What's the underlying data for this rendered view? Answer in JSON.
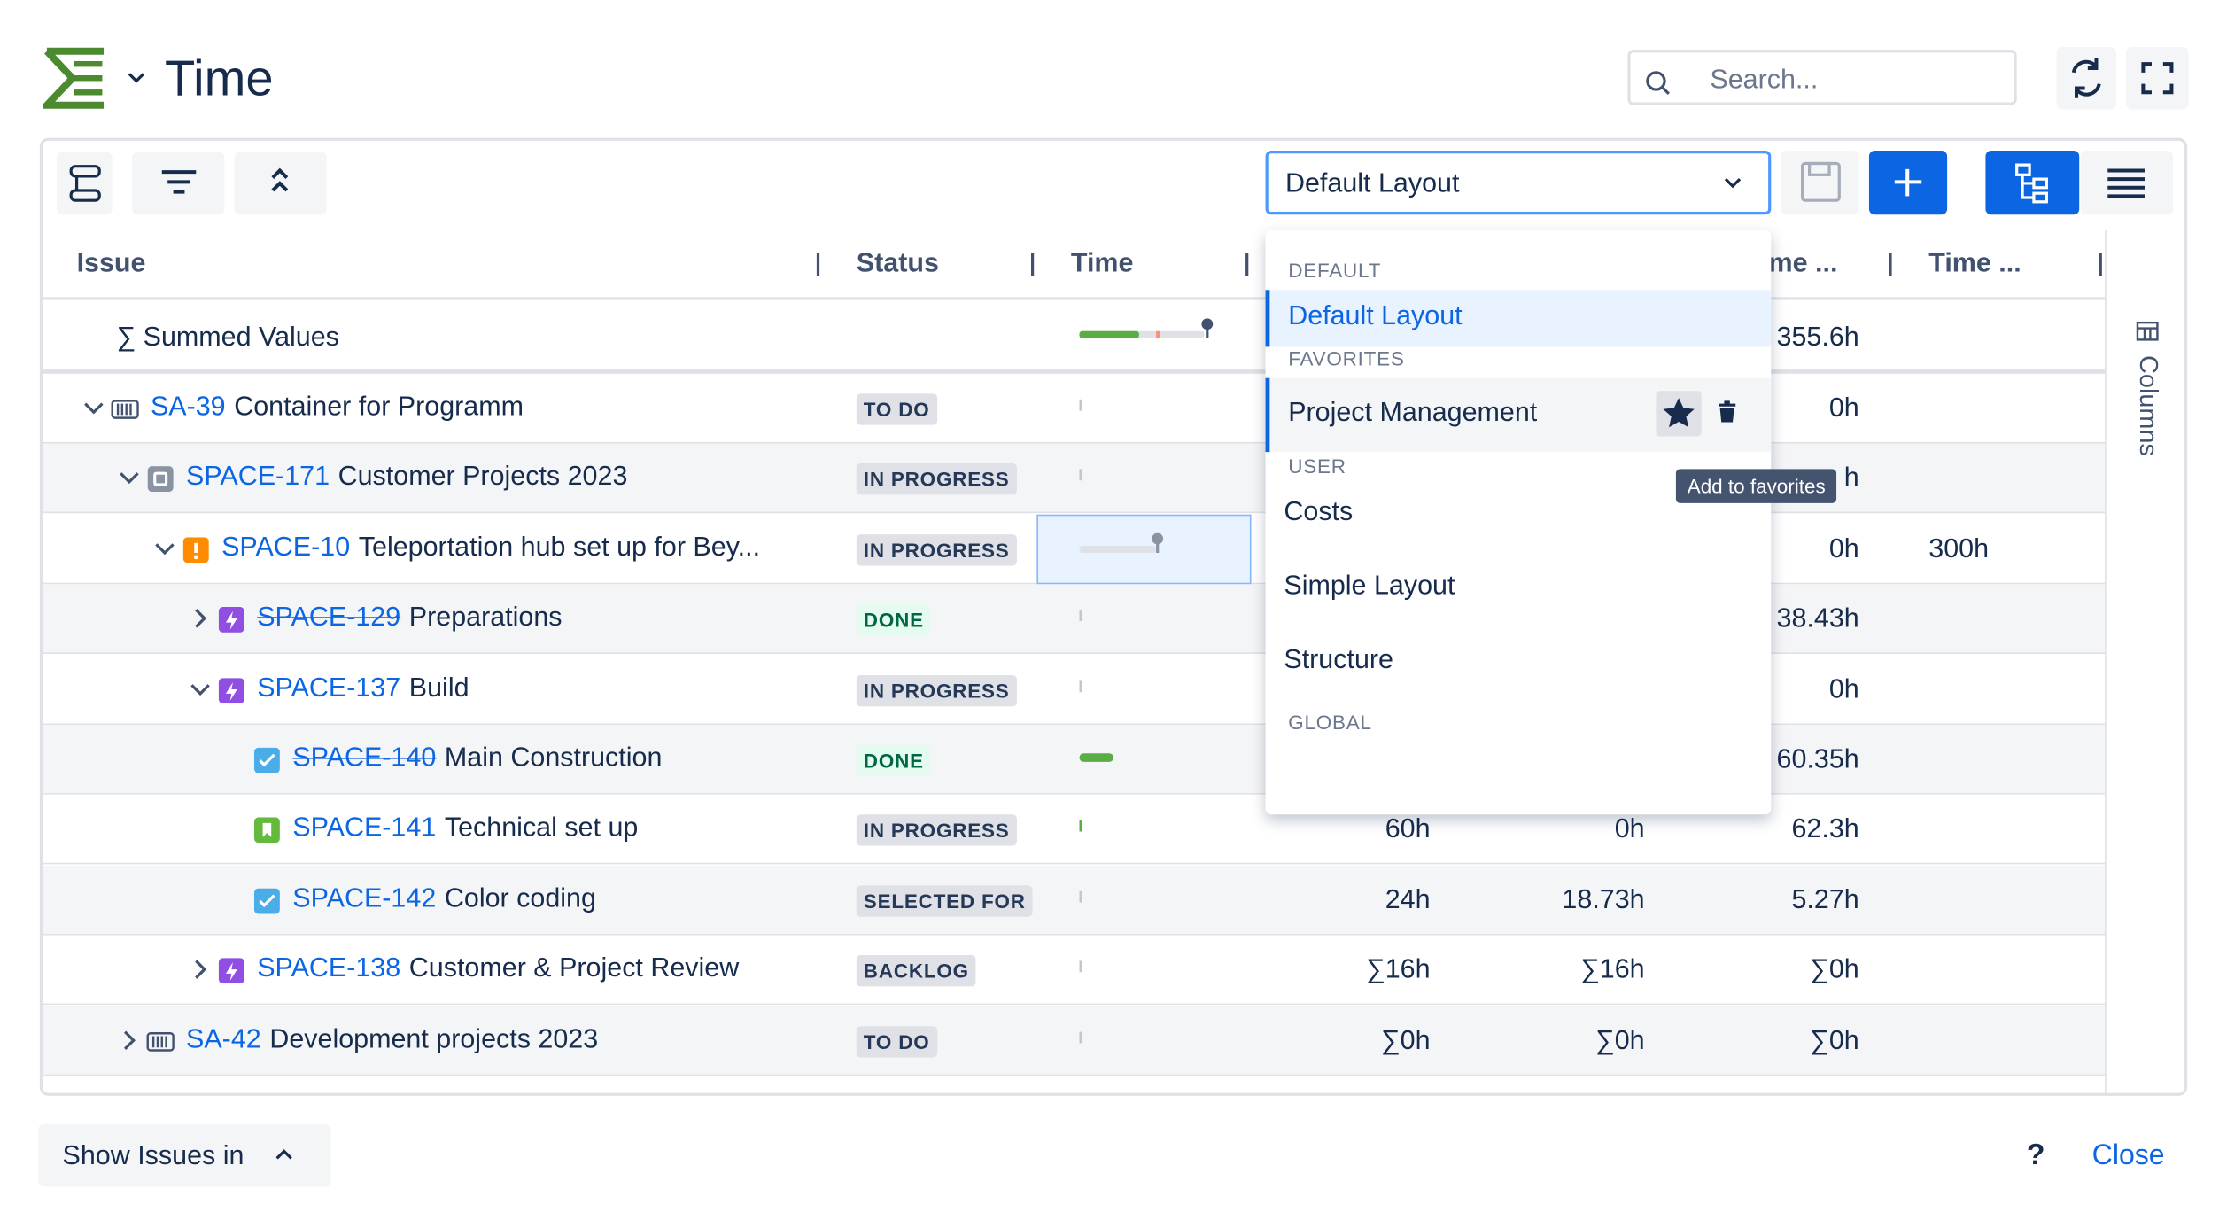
{
  "header": {
    "title": "Time",
    "search_placeholder": "Search..."
  },
  "toolbar": {
    "layout_select": "Default Layout"
  },
  "table": {
    "columns": [
      "Issue",
      "Status",
      "Time",
      "ime ...",
      "Time ..."
    ],
    "summary_row": {
      "label": "∑ Summed Values",
      "values": [
        null,
        null,
        "355.6h",
        null
      ]
    },
    "rows": [
      {
        "key": "SA-39",
        "summary": "Container for Programm",
        "status": "TO DO",
        "level": 0,
        "expander": "down",
        "icon": "container",
        "done": false,
        "values": [
          null,
          null,
          "0h",
          null
        ]
      },
      {
        "key": "SPACE-171",
        "summary": "Customer Projects 2023",
        "status": "IN PROGRESS",
        "level": 1,
        "expander": "down",
        "icon": "square",
        "done": false,
        "values": [
          null,
          null,
          "h",
          null
        ]
      },
      {
        "key": "SPACE-10",
        "summary": "Teleportation hub set up for Bey...",
        "status": "IN PROGRESS",
        "level": 2,
        "expander": "down",
        "icon": "alert",
        "done": false,
        "values": [
          null,
          null,
          "0h",
          "300h"
        ]
      },
      {
        "key": "SPACE-129",
        "summary": "Preparations",
        "status": "DONE",
        "level": 3,
        "expander": "right",
        "icon": "epic",
        "done": true,
        "values": [
          null,
          null,
          "38.43h",
          null
        ]
      },
      {
        "key": "SPACE-137",
        "summary": "Build",
        "status": "IN PROGRESS",
        "level": 3,
        "expander": "down",
        "icon": "epic",
        "done": false,
        "values": [
          null,
          null,
          "0h",
          null
        ]
      },
      {
        "key": "SPACE-140",
        "summary": "Main Construction",
        "status": "DONE",
        "level": 4,
        "expander": null,
        "icon": "task",
        "done": true,
        "values": [
          null,
          null,
          "60.35h",
          null
        ]
      },
      {
        "key": "SPACE-141",
        "summary": "Technical set up",
        "status": "IN PROGRESS",
        "level": 4,
        "expander": null,
        "icon": "story",
        "done": false,
        "values": [
          "60h",
          "0h",
          "62.3h",
          null
        ]
      },
      {
        "key": "SPACE-142",
        "summary": "Color coding",
        "status": "SELECTED FOR",
        "level": 4,
        "expander": null,
        "icon": "task",
        "done": false,
        "values": [
          "24h",
          "18.73h",
          "5.27h",
          null
        ]
      },
      {
        "key": "SPACE-138",
        "summary": "Customer & Project Review",
        "status": "BACKLOG",
        "level": 3,
        "expander": "right",
        "icon": "epic",
        "done": false,
        "values": [
          "∑16h",
          "∑16h",
          "∑0h",
          null
        ]
      },
      {
        "key": "SA-42",
        "summary": "Development projects 2023",
        "status": "TO DO",
        "level": 1,
        "expander": "right",
        "icon": "container",
        "done": false,
        "values": [
          "∑0h",
          "∑0h",
          "∑0h",
          null
        ]
      }
    ]
  },
  "dropdown": {
    "sections": [
      {
        "title": "DEFAULT",
        "items": [
          "Default Layout"
        ]
      },
      {
        "title": "FAVORITES",
        "items": [
          "Project Management"
        ]
      },
      {
        "title": "USER",
        "items": [
          "Costs",
          "Simple Layout",
          "Structure"
        ]
      },
      {
        "title": "GLOBAL",
        "items": []
      }
    ],
    "tooltip": "Add to favorites"
  },
  "side_panel": {
    "label": "Columns"
  },
  "footer": {
    "show_issues": "Show Issues in",
    "help": "?",
    "close": "Close"
  }
}
